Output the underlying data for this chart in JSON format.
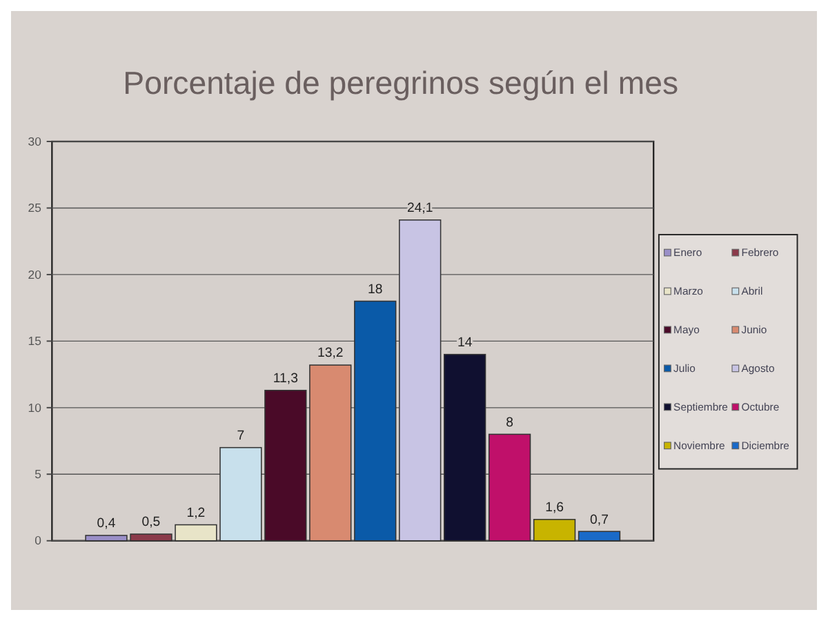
{
  "chart_data": {
    "type": "bar",
    "title": "Porcentaje de peregrinos según el mes",
    "categories": [
      null
    ],
    "series": [
      {
        "name": "Enero",
        "color": "#9a8fc8",
        "values": [
          0.4
        ],
        "value_labels": [
          "0,4"
        ]
      },
      {
        "name": "Febrero",
        "color": "#8b3a4a",
        "values": [
          0.5
        ],
        "value_labels": [
          "0,5"
        ]
      },
      {
        "name": "Marzo",
        "color": "#e8e4c8",
        "values": [
          1.2
        ],
        "value_labels": [
          "1,2"
        ]
      },
      {
        "name": "Abril",
        "color": "#c8e0ec",
        "values": [
          7
        ],
        "value_labels": [
          "7"
        ]
      },
      {
        "name": "Mayo",
        "color": "#4a0a28",
        "values": [
          11.3
        ],
        "value_labels": [
          "11,3"
        ]
      },
      {
        "name": "Junio",
        "color": "#d88a70",
        "values": [
          13.2
        ],
        "value_labels": [
          "13,2"
        ]
      },
      {
        "name": "Julio",
        "color": "#0a5aa8",
        "values": [
          18
        ],
        "value_labels": [
          "18"
        ]
      },
      {
        "name": "Agosto",
        "color": "#c8c4e4",
        "values": [
          24.1
        ],
        "value_labels": [
          "24,1"
        ]
      },
      {
        "name": "Septiembre",
        "color": "#101030",
        "values": [
          14
        ],
        "value_labels": [
          "14"
        ]
      },
      {
        "name": "Octubre",
        "color": "#c0106a",
        "values": [
          8
        ],
        "value_labels": [
          "8"
        ]
      },
      {
        "name": "Noviembre",
        "color": "#c8b400",
        "values": [
          1.6
        ],
        "value_labels": [
          "1,6"
        ]
      },
      {
        "name": "Diciembre",
        "color": "#1a6ac8",
        "values": [
          0.7
        ],
        "value_labels": [
          "0,7"
        ]
      }
    ],
    "ylim": [
      0,
      30
    ],
    "yticks": [
      0,
      5,
      10,
      15,
      20,
      25,
      30
    ],
    "grid": "y",
    "legend": "right"
  }
}
